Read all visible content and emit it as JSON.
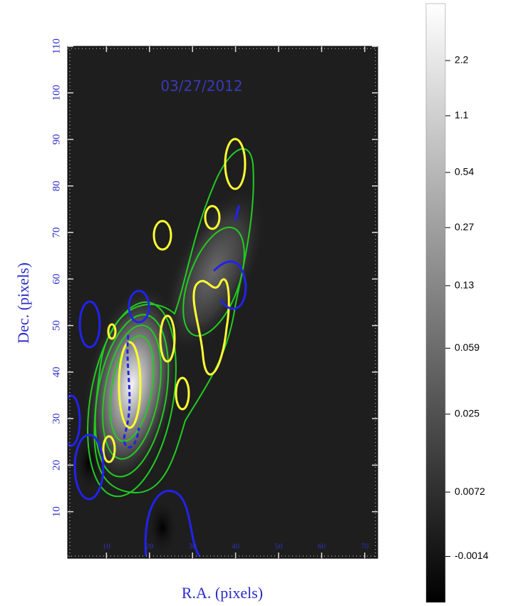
{
  "chart_data": {
    "type": "image",
    "title": "03/27/2012",
    "xlabel": "R.A. (pixels)",
    "ylabel": "Dec. (pixels)",
    "xlim": [
      1,
      73
    ],
    "xticks": [
      10,
      20,
      30,
      40,
      50,
      60,
      70
    ],
    "ylim": [
      0,
      110
    ],
    "yticks": [
      10,
      20,
      30,
      40,
      50,
      60,
      70,
      80,
      90,
      100,
      110
    ],
    "colorbar": {
      "scale": "asinh",
      "softening": 0.01,
      "lim": [
        -0.0078,
        4.5
      ],
      "ticks": [
        2.2,
        1.1,
        0.54,
        0.27,
        0.13,
        0.059,
        0.025,
        0.0072,
        -0.0014
      ]
    }
  }
}
